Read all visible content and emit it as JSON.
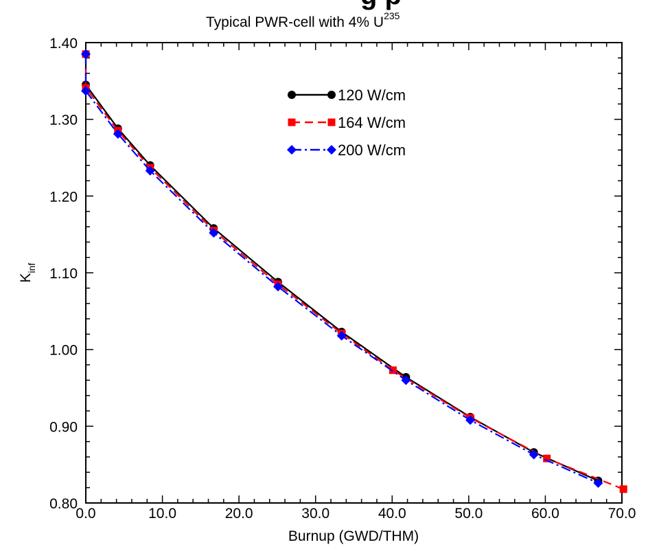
{
  "chart_data": {
    "type": "line",
    "title_visible_fragment": "g    p",
    "subtitle_prefix": "Typical PWR-cell with 4% U",
    "subtitle_superscript": "235",
    "xlabel": "Burnup (GWD/THM)",
    "ylabel_main": "K",
    "ylabel_sub": "inf",
    "xlim": [
      0,
      70
    ],
    "ylim": [
      0.8,
      1.4
    ],
    "x_ticks": [
      0,
      10,
      20,
      30,
      40,
      50,
      60,
      70
    ],
    "x_tick_labels": [
      "0.0",
      "10.0",
      "20.0",
      "30.0",
      "40.0",
      "50.0",
      "60.0",
      "70.0"
    ],
    "y_ticks": [
      0.8,
      0.9,
      1.0,
      1.1,
      1.2,
      1.3,
      1.4
    ],
    "y_tick_labels": [
      "0.80",
      "0.90",
      "1.00",
      "1.10",
      "1.20",
      "1.30",
      "1.40"
    ],
    "legend_position": "top-center",
    "grid": false,
    "series": [
      {
        "name": "120 W/cm",
        "color": "#000000",
        "dash": "solid",
        "marker": "circle",
        "x": [
          0,
          0,
          4.2,
          8.4,
          16.7,
          25.1,
          33.4,
          41.8,
          50.2,
          58.5,
          66.9
        ],
        "y": [
          1.385,
          1.345,
          1.288,
          1.24,
          1.158,
          1.088,
          1.023,
          0.964,
          0.912,
          0.866,
          0.829
        ]
      },
      {
        "name": "164 W/cm",
        "color": "#ff0000",
        "dash": "dashed",
        "marker": "square",
        "x": [
          0,
          0,
          4.2,
          8.4,
          16.7,
          25.1,
          33.4,
          40.1,
          50.2,
          60.2,
          70.2
        ],
        "y": [
          1.385,
          1.341,
          1.285,
          1.237,
          1.155,
          1.085,
          1.021,
          0.973,
          0.911,
          0.858,
          0.818
        ]
      },
      {
        "name": "200 W/cm",
        "color": "#0000ff",
        "dash": "dashdot",
        "marker": "diamond",
        "x": [
          0,
          0,
          4.2,
          8.4,
          16.7,
          25.1,
          33.4,
          41.8,
          50.2,
          58.5,
          66.9
        ],
        "y": [
          1.385,
          1.337,
          1.281,
          1.233,
          1.152,
          1.082,
          1.018,
          0.96,
          0.908,
          0.863,
          0.826
        ]
      }
    ]
  }
}
